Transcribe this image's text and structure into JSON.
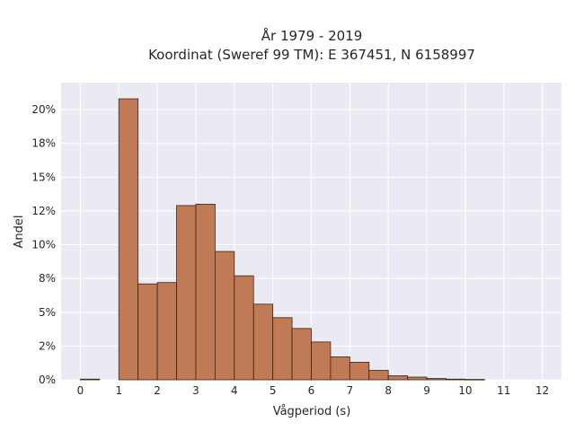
{
  "chart_data": {
    "type": "bar",
    "title_lines": [
      "År 1979 - 2019",
      "Koordinat (Sweref 99 TM): E 367451, N 6158997"
    ],
    "xlabel": "Vågperiod (s)",
    "ylabel": "Andel",
    "xlim": [
      -0.5,
      12.5
    ],
    "ylim": [
      0,
      22
    ],
    "x_ticks": [
      0,
      1,
      2,
      3,
      4,
      5,
      6,
      7,
      8,
      9,
      10,
      11,
      12
    ],
    "x_tick_labels": [
      "0",
      "1",
      "2",
      "3",
      "4",
      "5",
      "6",
      "7",
      "8",
      "9",
      "10",
      "11",
      "12"
    ],
    "y_ticks": [
      0,
      2.5,
      5,
      7.5,
      10,
      12.5,
      15,
      17.5,
      20
    ],
    "y_tick_labels": [
      "0%",
      "2%",
      "5%",
      "8%",
      "10%",
      "12%",
      "15%",
      "18%",
      "20%"
    ],
    "bin_width": 0.5,
    "bins": [
      {
        "start": 0.0,
        "value": 0.05
      },
      {
        "start": 1.0,
        "value": 20.8
      },
      {
        "start": 1.5,
        "value": 7.1
      },
      {
        "start": 2.0,
        "value": 7.2
      },
      {
        "start": 2.5,
        "value": 12.9
      },
      {
        "start": 3.0,
        "value": 13.0
      },
      {
        "start": 3.5,
        "value": 9.5
      },
      {
        "start": 4.0,
        "value": 7.7
      },
      {
        "start": 4.5,
        "value": 5.6
      },
      {
        "start": 5.0,
        "value": 4.6
      },
      {
        "start": 5.5,
        "value": 3.8
      },
      {
        "start": 6.0,
        "value": 2.8
      },
      {
        "start": 6.5,
        "value": 1.7
      },
      {
        "start": 7.0,
        "value": 1.3
      },
      {
        "start": 7.5,
        "value": 0.7
      },
      {
        "start": 8.0,
        "value": 0.3
      },
      {
        "start": 8.5,
        "value": 0.2
      },
      {
        "start": 9.0,
        "value": 0.1
      },
      {
        "start": 9.5,
        "value": 0.05
      },
      {
        "start": 10.0,
        "value": 0.03
      }
    ],
    "grid": true,
    "colors": {
      "bar_fill": "#c07b56",
      "bar_edge": "#3a2418",
      "plot_bg": "#eaeaf2",
      "grid": "#ffffff",
      "text": "#262626"
    }
  }
}
